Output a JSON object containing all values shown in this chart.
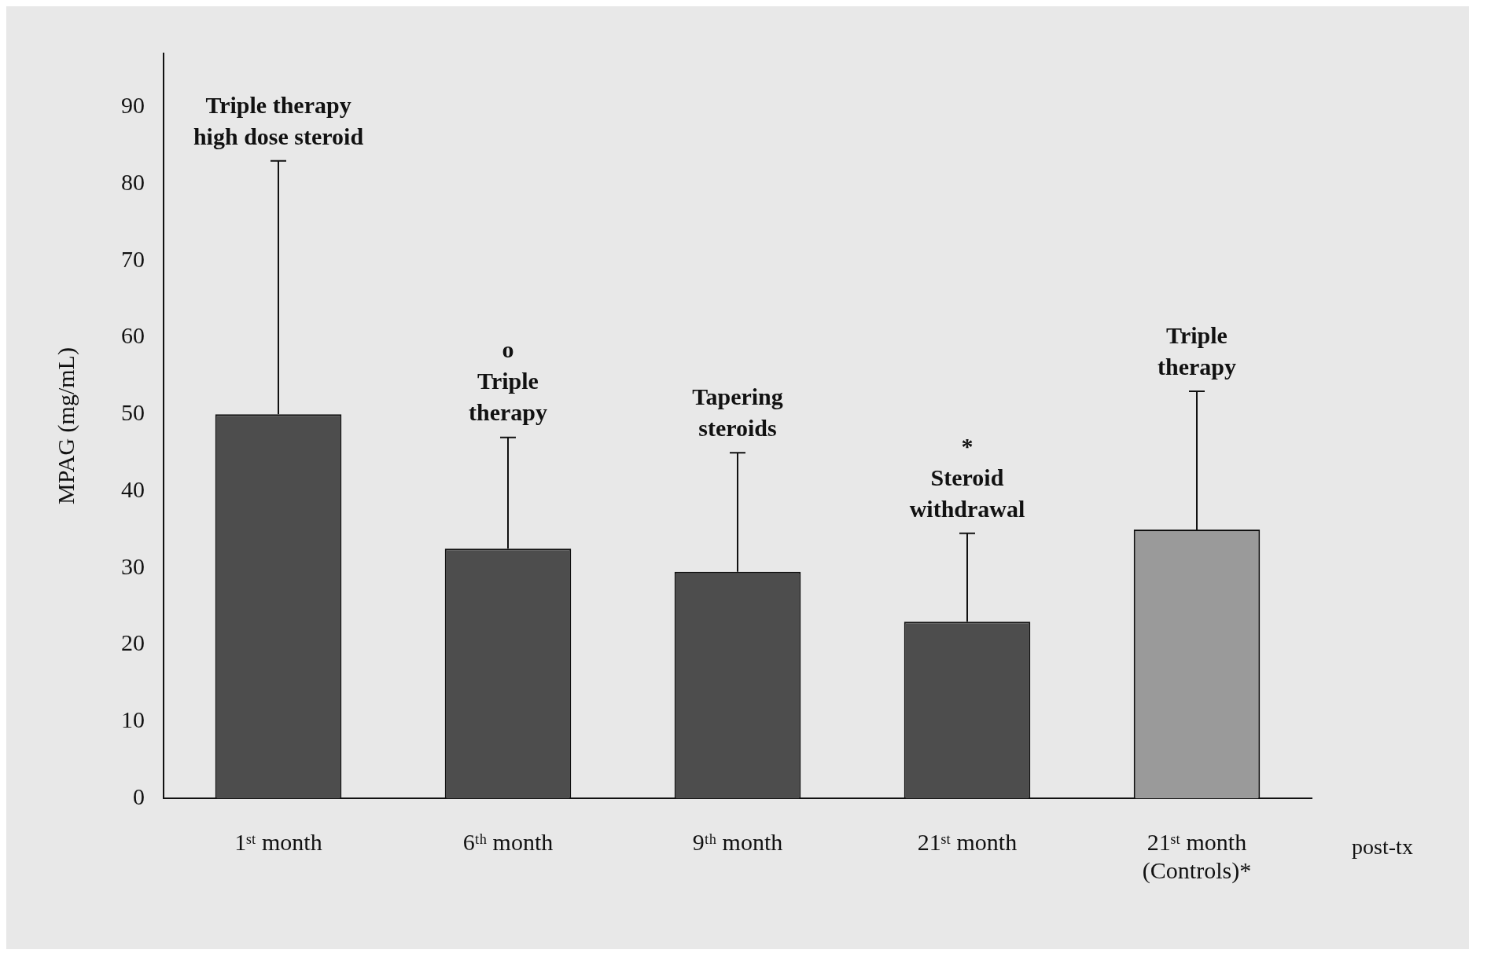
{
  "chart_data": {
    "type": "bar",
    "ylabel": "MPAG (mg/mL)",
    "categories": [
      "1ˢᵗ month",
      "6ᵗʰ month",
      "9ᵗʰ month",
      "21ˢᵗ month",
      "21ˢᵗ month\n(Controls)*"
    ],
    "values": [
      50,
      32.5,
      29.5,
      23,
      35
    ],
    "colors": [
      "#4d4d4d",
      "#4d4d4d",
      "#4d4d4d",
      "#4d4d4d",
      "#9a9a9a"
    ],
    "errors": [
      [
        50,
        83
      ],
      [
        32.5,
        47
      ],
      [
        29.5,
        45
      ],
      [
        23,
        34.5
      ],
      [
        35,
        53
      ]
    ],
    "ylim": [
      0,
      97
    ],
    "yticks": [
      0,
      10,
      20,
      30,
      40,
      50,
      60,
      70,
      80,
      90
    ],
    "grid": false,
    "legend": false,
    "annotations": [
      {
        "text": "Triple therapy\nhigh dose steroid",
        "x": "1ˢᵗ month",
        "y": 83
      },
      {
        "text": "o\nTriple\ntherapy",
        "x": "6ᵗʰ month",
        "y": 47
      },
      {
        "text": "Tapering\nsteroids",
        "x": "9ᵗʰ month",
        "y": 45
      },
      {
        "text": "*\nSteroid\nwithdrawal",
        "x": "21ˢᵗ month",
        "y": 34.5
      },
      {
        "text": "Triple\ntherapy",
        "x": "21ˢᵗ month\n(Controls)*",
        "y": 53
      },
      "post-tx"
    ]
  }
}
